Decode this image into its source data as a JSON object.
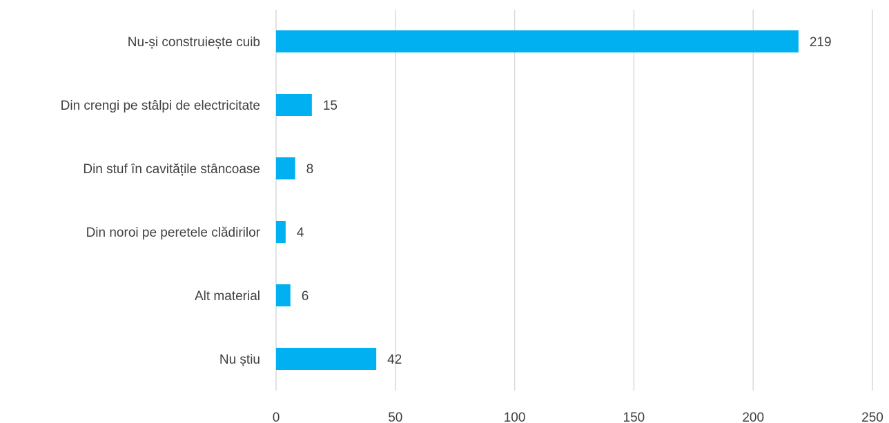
{
  "chart_data": {
    "type": "bar",
    "orientation": "horizontal",
    "categories": [
      "Nu-și construiește cuib",
      "Din crengi pe stâlpi de electricitate",
      "Din stuf în cavitățile stâncoase",
      "Din noroi pe peretele clădirilor",
      "Alt material",
      "Nu știu"
    ],
    "values": [
      219,
      15,
      8,
      4,
      6,
      42
    ],
    "data_labels": [
      "219",
      "15",
      "8",
      "4",
      "6",
      "42"
    ],
    "x_ticks": [
      "0",
      "50",
      "100",
      "150",
      "200",
      "250"
    ],
    "xlim": [
      0,
      250
    ],
    "grid": "vertical",
    "legend": "none",
    "bar_color": "#00B0F0",
    "grid_color": "#D9D9D9",
    "text_color": "#404040"
  }
}
